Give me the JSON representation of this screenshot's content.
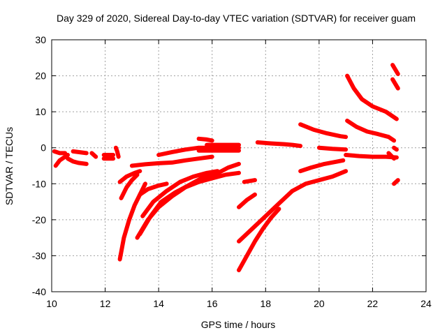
{
  "chart_data": {
    "type": "scatter",
    "title": "Day 329 of 2020, Sidereal Day-to-day VTEC variation (SDTVAR) for receiver guam",
    "xlabel": "GPS time / hours",
    "ylabel": "SDTVAR / TECUs",
    "xlim": [
      10,
      24
    ],
    "ylim": [
      -40,
      30
    ],
    "xticks": [
      10,
      12,
      14,
      16,
      18,
      20,
      22,
      24
    ],
    "yticks": [
      -40,
      -30,
      -20,
      -10,
      0,
      10,
      20,
      30
    ],
    "grid": true,
    "marker": "plus",
    "color": "#ff0000",
    "series": [
      {
        "x": [
          10.15,
          10.3,
          10.5,
          10.6
        ],
        "y": [
          -5,
          -3.5,
          -2.5,
          -2
        ]
      },
      {
        "x": [
          10.1,
          10.3,
          10.5
        ],
        "y": [
          -1,
          -1.5,
          -1.5
        ]
      },
      {
        "x": [
          10.6,
          10.8,
          11.0,
          11.3
        ],
        "y": [
          -3,
          -3.8,
          -4.2,
          -4.5
        ]
      },
      {
        "x": [
          10.8,
          11.0,
          11.3
        ],
        "y": [
          -1,
          -1.2,
          -1.5
        ]
      },
      {
        "x": [
          11.5,
          11.65
        ],
        "y": [
          -1.5,
          -2.5
        ]
      },
      {
        "x": [
          11.95,
          12.3
        ],
        "y": [
          -3,
          -3
        ]
      },
      {
        "x": [
          11.95,
          12.3
        ],
        "y": [
          -2,
          -2
        ]
      },
      {
        "x": [
          12.4,
          12.45,
          12.5
        ],
        "y": [
          0,
          -1,
          -2.5
        ]
      },
      {
        "x": [
          12.55,
          12.7,
          12.9,
          13.1,
          13.3,
          13.5
        ],
        "y": [
          -31,
          -25,
          -20,
          -16,
          -13,
          -10
        ]
      },
      {
        "x": [
          12.6,
          12.8,
          13.0,
          13.2
        ],
        "y": [
          -14,
          -11,
          -9,
          -7.5
        ]
      },
      {
        "x": [
          12.55,
          12.8,
          13.1,
          13.3
        ],
        "y": [
          -9.5,
          -8,
          -7,
          -6.5
        ]
      },
      {
        "x": [
          13.0,
          13.5,
          14.0,
          14.5,
          15.0,
          15.5,
          16.0
        ],
        "y": [
          -5,
          -4.6,
          -4.3,
          -4.1,
          -3.5,
          -3,
          -2.5
        ]
      },
      {
        "x": [
          13.2,
          13.6,
          14.0,
          14.5,
          15.0,
          15.5,
          16.0,
          16.5,
          17.0
        ],
        "y": [
          -25,
          -20,
          -16.5,
          -13.5,
          -11,
          -9.5,
          -8.5,
          -7.5,
          -7
        ]
      },
      {
        "x": [
          13.3,
          13.7,
          14.1,
          14.6,
          15.1,
          15.6,
          16.1,
          16.6,
          17.0
        ],
        "y": [
          -24,
          -19,
          -15,
          -12.5,
          -10.5,
          -8.5,
          -7.5,
          -5.5,
          -4.5
        ]
      },
      {
        "x": [
          13.4,
          13.8,
          14.3,
          14.8,
          15.3,
          15.8,
          16.2
        ],
        "y": [
          -19,
          -15,
          -12,
          -9.5,
          -8,
          -7,
          -6.5
        ]
      },
      {
        "x": [
          13.3,
          13.6,
          14.0,
          14.3
        ],
        "y": [
          -13,
          -11.5,
          -10.5,
          -10
        ]
      },
      {
        "x": [
          14.0,
          14.5,
          15.0,
          15.5,
          16.0,
          16.5,
          17.0
        ],
        "y": [
          -2,
          -1.2,
          -0.5,
          0,
          0,
          0,
          0
        ]
      },
      {
        "x": [
          15.5,
          16.0,
          16.5,
          17.0
        ],
        "y": [
          -0.8,
          -0.8,
          -0.8,
          -0.8
        ]
      },
      {
        "x": [
          15.8,
          16.2,
          16.6,
          17.0
        ],
        "y": [
          0.8,
          0.8,
          0.8,
          0.8
        ]
      },
      {
        "x": [
          15.5,
          15.8,
          16.0
        ],
        "y": [
          2.5,
          2.3,
          2
        ]
      },
      {
        "x": [
          17.0,
          17.5,
          18.0,
          18.5,
          19.0
        ],
        "y": [
          -26,
          -22.5,
          -19,
          -15.5,
          -12
        ]
      },
      {
        "x": [
          17.0,
          17.3,
          17.6,
          17.9,
          18.2,
          18.5
        ],
        "y": [
          -34,
          -30,
          -26,
          -22.5,
          -19.5,
          -17
        ]
      },
      {
        "x": [
          17.0,
          17.3,
          17.6
        ],
        "y": [
          -16.5,
          -14.5,
          -13
        ]
      },
      {
        "x": [
          17.2,
          17.6
        ],
        "y": [
          -9.5,
          -9
        ]
      },
      {
        "x": [
          17.7,
          18.2,
          18.7,
          19.0,
          19.3
        ],
        "y": [
          1.5,
          1.2,
          1,
          0.8,
          0.5
        ]
      },
      {
        "x": [
          19.0,
          19.5,
          20.0,
          20.5,
          21.0
        ],
        "y": [
          -12,
          -10,
          -9,
          -8,
          -6.5
        ]
      },
      {
        "x": [
          19.3,
          19.7,
          20.2,
          20.7,
          20.9
        ],
        "y": [
          -6.5,
          -5.5,
          -4.5,
          -3.8,
          -3.5
        ]
      },
      {
        "x": [
          19.3,
          19.8,
          20.3,
          20.8,
          21.0
        ],
        "y": [
          6.5,
          5,
          4,
          3.2,
          3
        ]
      },
      {
        "x": [
          20.0,
          20.5,
          21.0
        ],
        "y": [
          0,
          -0.3,
          -0.5
        ]
      },
      {
        "x": [
          21.0,
          21.5,
          22.0,
          22.5,
          22.9
        ],
        "y": [
          -2,
          -2.3,
          -2.5,
          -2.5,
          -2.7
        ]
      },
      {
        "x": [
          21.05,
          21.3,
          21.6,
          22.0,
          22.5,
          22.9
        ],
        "y": [
          20,
          16.5,
          13.5,
          11.5,
          10,
          8
        ]
      },
      {
        "x": [
          21.05,
          21.4,
          21.8,
          22.2,
          22.6,
          22.8
        ],
        "y": [
          7.5,
          5.8,
          4.5,
          3.8,
          3,
          2
        ]
      },
      {
        "x": [
          22.6,
          22.8
        ],
        "y": [
          -1.5,
          -3
        ]
      },
      {
        "x": [
          22.75,
          22.95
        ],
        "y": [
          23,
          20.5
        ]
      },
      {
        "x": [
          22.75,
          22.95
        ],
        "y": [
          19,
          16.5
        ]
      },
      {
        "x": [
          22.8,
          22.95
        ],
        "y": [
          -10,
          -9
        ]
      },
      {
        "x": [
          22.8,
          22.9
        ],
        "y": [
          0,
          -0.5
        ]
      }
    ]
  }
}
